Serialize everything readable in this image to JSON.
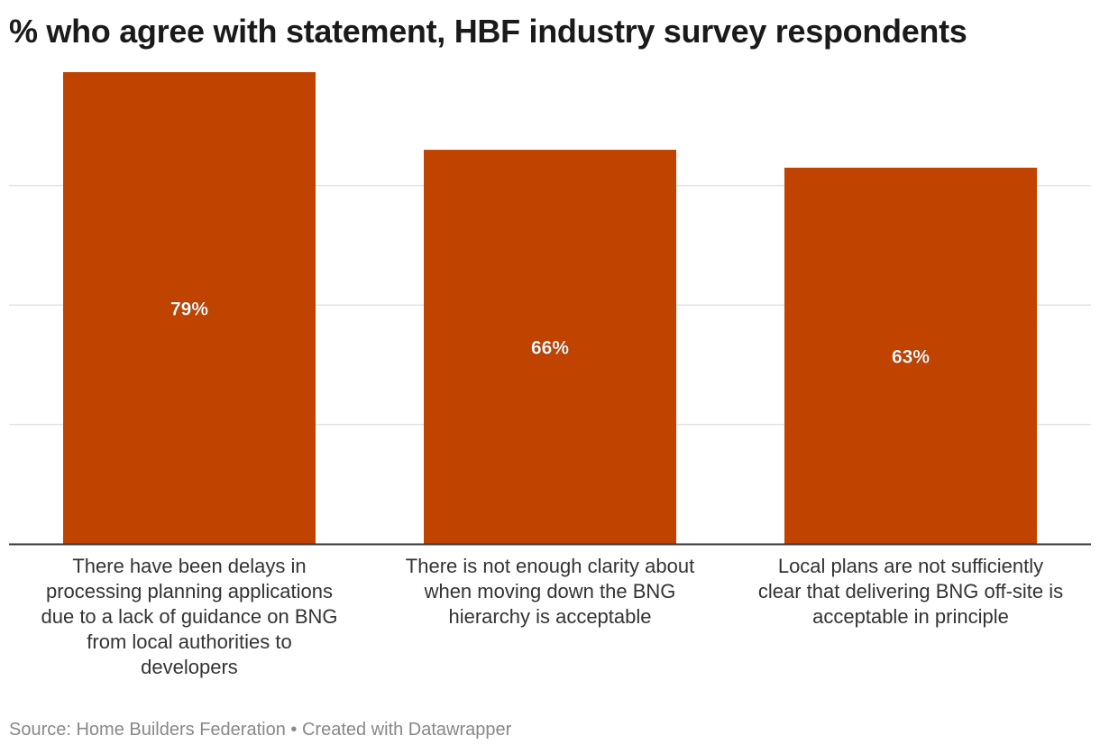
{
  "title": "% who agree with statement, HBF industry survey respondents",
  "colors": {
    "bar": "#c04400",
    "grid": "#e3e3e3",
    "axis": "#333333",
    "label": "#ffffff"
  },
  "chart_data": {
    "type": "bar",
    "title": "% who agree with statement, HBF industry survey respondents",
    "categories": [
      "There have been delays in processing planning applications due to a lack of guidance on BNG from local authorities to developers",
      "There is not enough clarity about when moving down the BNG hierarchy is acceptable",
      "Local plans are not sufficiently clear that delivering BNG off-site is acceptable in principle"
    ],
    "values": [
      79,
      66,
      63
    ],
    "value_labels": [
      "79%",
      "66%",
      "63%"
    ],
    "xlabel": "",
    "ylabel": "",
    "ylim": [
      0,
      79
    ],
    "grid": true
  },
  "footer": {
    "source": "Source: Home Builders Federation",
    "separator": "•",
    "credit": "Created with Datawrapper"
  }
}
